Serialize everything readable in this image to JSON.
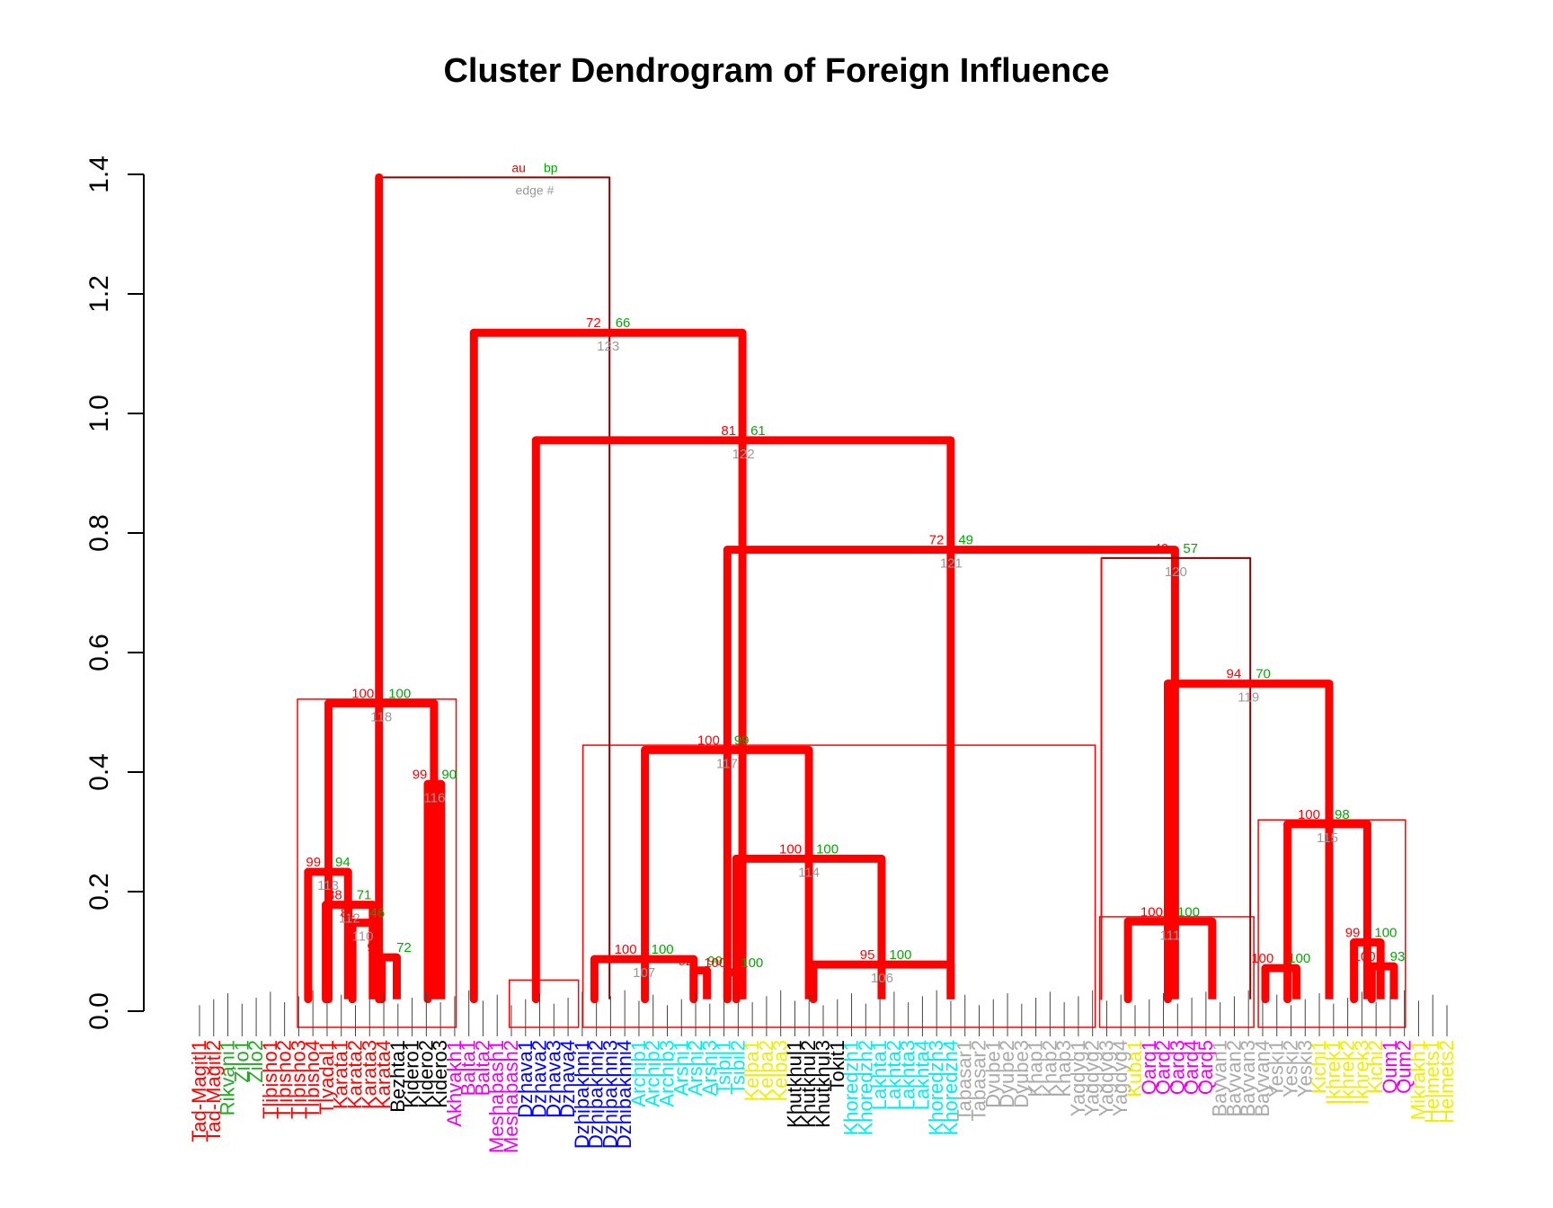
{
  "chart_data": {
    "type": "dendrogram",
    "title": "Cluster Dendrogram of Foreign Influence",
    "ylabel": "",
    "xlabel": "",
    "ylim": [
      0,
      1.4
    ],
    "yticks": [
      0.0,
      0.2,
      0.4,
      0.6,
      0.8,
      1.0,
      1.2,
      1.4
    ],
    "tick_labels": [
      "0.0",
      "0.2",
      "0.4",
      "0.6",
      "0.8",
      "1.0",
      "1.2",
      "1.4"
    ],
    "legend": {
      "au": "au",
      "bp": "bp",
      "edge": "edge #"
    },
    "colors": {
      "au": "#ff0000",
      "bp": "#00aa00",
      "edge": "#999999",
      "significant": "#ff0000",
      "normal": "#8b0000",
      "box": "#ff0000"
    },
    "top_merge": {
      "height": 1.395
    },
    "merges": [
      {
        "height": 1.395,
        "au": "",
        "bp": "",
        "edge": "",
        "left_x": 0.285,
        "right_x": 0.545
      },
      {
        "height": 1.135,
        "au": "72",
        "bp": "66",
        "edge": "123",
        "left_x": 0.392,
        "right_x": 0.695
      },
      {
        "height": 0.955,
        "au": "81",
        "bp": "61",
        "edge": "122",
        "left_x": 0.462,
        "right_x": 0.93
      },
      {
        "height": 0.772,
        "au": "72",
        "bp": "49",
        "edge": "121",
        "left_x": 0.678,
        "right_x": 1.183
      },
      {
        "height": 0.758,
        "au": "49",
        "bp": "57",
        "edge": "120",
        "left_x": 1.1,
        "right_x": 1.268
      },
      {
        "height": 0.548,
        "au": "94",
        "bp": "70",
        "edge": "119",
        "left_x": 1.175,
        "right_x": 1.357
      },
      {
        "height": 0.515,
        "au": "100",
        "bp": "100",
        "edge": "118",
        "left_x": 0.228,
        "right_x": 0.347
      },
      {
        "height": 0.437,
        "au": "100",
        "bp": "99",
        "edge": "117",
        "left_x": 0.585,
        "right_x": 0.77
      },
      {
        "height": 0.38,
        "au": "99",
        "bp": "90",
        "edge": "116",
        "left_x": 0.34,
        "right_x": 0.355
      },
      {
        "height": 0.313,
        "au": "100",
        "bp": "98",
        "edge": "115",
        "left_x": 1.31,
        "right_x": 1.4
      },
      {
        "height": 0.255,
        "au": "100",
        "bp": "100",
        "edge": "114",
        "left_x": 0.688,
        "right_x": 0.852
      },
      {
        "height": 0.233,
        "au": "99",
        "bp": "94",
        "edge": "113",
        "left_x": 0.205,
        "right_x": 0.25
      },
      {
        "height": 0.178,
        "au": "88",
        "bp": "71",
        "edge": "112",
        "left_x": 0.225,
        "right_x": 0.278
      },
      {
        "height": 0.15,
        "au": "100",
        "bp": "100",
        "edge": "111",
        "left_x": 1.13,
        "right_x": 1.225
      },
      {
        "height": 0.148,
        "au": "81",
        "bp": "46",
        "edge": "110",
        "left_x": 0.255,
        "right_x": 0.278
      },
      {
        "height": 0.115,
        "au": "99",
        "bp": "100",
        "edge": "",
        "left_x": 1.385,
        "right_x": 1.415
      },
      {
        "height": 0.09,
        "au": "99",
        "bp": "72",
        "edge": "",
        "left_x": 0.288,
        "right_x": 0.305
      },
      {
        "height": 0.087,
        "au": "100",
        "bp": "100",
        "edge": "107",
        "left_x": 0.528,
        "right_x": 0.64
      },
      {
        "height": 0.078,
        "au": "95",
        "bp": "100",
        "edge": "106",
        "left_x": 0.775,
        "right_x": 0.93
      },
      {
        "height": 0.068,
        "au": "92",
        "bp": "90",
        "edge": "",
        "left_x": 0.64,
        "right_x": 0.655
      },
      {
        "height": 0.065,
        "au": "100",
        "bp": "100",
        "edge": "",
        "left_x": 0.678,
        "right_x": 0.692
      },
      {
        "height": 0.072,
        "au": "100",
        "bp": "100",
        "edge": "",
        "left_x": 1.285,
        "right_x": 1.32
      },
      {
        "height": 0.075,
        "au": "100",
        "bp": "93",
        "edge": "",
        "left_x": 1.405,
        "right_x": 1.43
      }
    ],
    "boxes": [
      {
        "x1": 0.193,
        "x2": 0.372,
        "height": 0.522
      },
      {
        "x1": 0.515,
        "x2": 1.093,
        "height": 0.445
      },
      {
        "x1": 1.098,
        "x2": 1.272,
        "height": 0.158
      },
      {
        "x1": 1.277,
        "x2": 1.443,
        "height": 0.32
      },
      {
        "x1": 0.432,
        "x2": 0.51,
        "height": 0.052
      }
    ],
    "leaves": [
      {
        "label": "Tad-Magitl1",
        "color": "#ff0000"
      },
      {
        "label": "Tad-Magitl2",
        "color": "#ff0000"
      },
      {
        "label": "Rikvani1",
        "color": "#22aa22"
      },
      {
        "label": "Zilo1",
        "color": "#22aa22"
      },
      {
        "label": "Zilo2",
        "color": "#22aa22"
      },
      {
        "label": "Tlibisho1",
        "color": "#ff0000"
      },
      {
        "label": "Tlibisho2",
        "color": "#ff0000"
      },
      {
        "label": "Tlibisho3",
        "color": "#ff0000"
      },
      {
        "label": "Tlibisho4",
        "color": "#ff0000"
      },
      {
        "label": "Tlyadal1",
        "color": "#ff0000"
      },
      {
        "label": "Karata1",
        "color": "#ff0000"
      },
      {
        "label": "Karata2",
        "color": "#ff0000"
      },
      {
        "label": "Karata3",
        "color": "#ff0000"
      },
      {
        "label": "Karata4",
        "color": "#ff0000"
      },
      {
        "label": "Bezhta1",
        "color": "#000000"
      },
      {
        "label": "Kidero1",
        "color": "#000000"
      },
      {
        "label": "Kidero2",
        "color": "#000000"
      },
      {
        "label": "Kidero3",
        "color": "#000000"
      },
      {
        "label": "Akhvakh1",
        "color": "#ee00ee"
      },
      {
        "label": "Balta1",
        "color": "#ee00ee"
      },
      {
        "label": "Balta2",
        "color": "#ee00ee"
      },
      {
        "label": "Meshabash1",
        "color": "#ee00ee"
      },
      {
        "label": "Meshabash2",
        "color": "#ee00ee"
      },
      {
        "label": "Dzhava1",
        "color": "#0000ff"
      },
      {
        "label": "Dzhava2",
        "color": "#0000ff"
      },
      {
        "label": "Dzhava3",
        "color": "#0000ff"
      },
      {
        "label": "Dzhava4",
        "color": "#0000ff"
      },
      {
        "label": "Dzhibakhni1",
        "color": "#0000ff"
      },
      {
        "label": "Dzhibakhni2",
        "color": "#0000ff"
      },
      {
        "label": "Dzhibakhni3",
        "color": "#0000ff"
      },
      {
        "label": "Dzhibakhni4",
        "color": "#0000ff"
      },
      {
        "label": "Archib1",
        "color": "#00eeee"
      },
      {
        "label": "Archib2",
        "color": "#00eeee"
      },
      {
        "label": "Archib3",
        "color": "#00eeee"
      },
      {
        "label": "Arshi1",
        "color": "#00eeee"
      },
      {
        "label": "Arshi2",
        "color": "#00eeee"
      },
      {
        "label": "Arshi3",
        "color": "#00eeee"
      },
      {
        "label": "Tsibil1",
        "color": "#00eeee"
      },
      {
        "label": "Tsibil2",
        "color": "#00eeee"
      },
      {
        "label": "Kelba1",
        "color": "#eeee00"
      },
      {
        "label": "Kelba2",
        "color": "#eeee00"
      },
      {
        "label": "Kelba3",
        "color": "#eeee00"
      },
      {
        "label": "Khutkhul1",
        "color": "#000000"
      },
      {
        "label": "Khutkhul2",
        "color": "#000000"
      },
      {
        "label": "Khutkhul3",
        "color": "#000000"
      },
      {
        "label": "Tokit1",
        "color": "#000000"
      },
      {
        "label": "Khoredzh1",
        "color": "#00eeee"
      },
      {
        "label": "Khoredzh2",
        "color": "#00eeee"
      },
      {
        "label": "Lakhta1",
        "color": "#00eeee"
      },
      {
        "label": "Lakhta2",
        "color": "#00eeee"
      },
      {
        "label": "Lakhta3",
        "color": "#00eeee"
      },
      {
        "label": "Lakhta4",
        "color": "#00eeee"
      },
      {
        "label": "Khoredzh3",
        "color": "#00eeee"
      },
      {
        "label": "Khoredzh4",
        "color": "#00eeee"
      },
      {
        "label": "Tabasar1",
        "color": "#aaaaaa"
      },
      {
        "label": "Tabasar2",
        "color": "#aaaaaa"
      },
      {
        "label": "Dyube1",
        "color": "#aaaaaa"
      },
      {
        "label": "Dyube2",
        "color": "#aaaaaa"
      },
      {
        "label": "Dyube3",
        "color": "#aaaaaa"
      },
      {
        "label": "Khap1",
        "color": "#aaaaaa"
      },
      {
        "label": "Khap2",
        "color": "#aaaaaa"
      },
      {
        "label": "Khap3",
        "color": "#aaaaaa"
      },
      {
        "label": "Yagdyg1",
        "color": "#aaaaaa"
      },
      {
        "label": "Yagdyg2",
        "color": "#aaaaaa"
      },
      {
        "label": "Yagdyg3",
        "color": "#aaaaaa"
      },
      {
        "label": "Yagdyg4",
        "color": "#aaaaaa"
      },
      {
        "label": "Kuba1",
        "color": "#eeee00"
      },
      {
        "label": "Qarq1",
        "color": "#ee00ee"
      },
      {
        "label": "Qarq2",
        "color": "#ee00ee"
      },
      {
        "label": "Qarq3",
        "color": "#ee00ee"
      },
      {
        "label": "Qarq4",
        "color": "#ee00ee"
      },
      {
        "label": "Qarq5",
        "color": "#ee00ee"
      },
      {
        "label": "Bayvan1",
        "color": "#aaaaaa"
      },
      {
        "label": "Bayvan2",
        "color": "#aaaaaa"
      },
      {
        "label": "Bayvan3",
        "color": "#aaaaaa"
      },
      {
        "label": "Bayvan4",
        "color": "#aaaaaa"
      },
      {
        "label": "Yeski1",
        "color": "#aaaaaa"
      },
      {
        "label": "Yeski2",
        "color": "#aaaaaa"
      },
      {
        "label": "Yeski3",
        "color": "#aaaaaa"
      },
      {
        "label": "Kichi1",
        "color": "#eeee00"
      },
      {
        "label": "Ikhrek1",
        "color": "#eeee00"
      },
      {
        "label": "Ikhrek2",
        "color": "#eeee00"
      },
      {
        "label": "Ikhrek3",
        "color": "#eeee00"
      },
      {
        "label": "Kichi2",
        "color": "#eeee00"
      },
      {
        "label": "Qum1",
        "color": "#ee00ee"
      },
      {
        "label": "Qum2",
        "color": "#ee00ee"
      },
      {
        "label": "Mikrakh1",
        "color": "#eeee00"
      },
      {
        "label": "Helmets1",
        "color": "#eeee00"
      },
      {
        "label": "Helmets2",
        "color": "#eeee00"
      }
    ]
  }
}
